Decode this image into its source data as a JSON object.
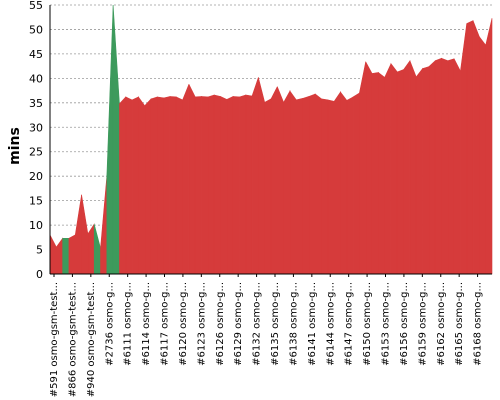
{
  "chart_data": {
    "type": "area",
    "title": "",
    "xlabel": "",
    "ylabel": "mins",
    "ylim": [
      0,
      55
    ],
    "yticks": [
      0,
      5,
      10,
      15,
      20,
      25,
      30,
      35,
      40,
      45,
      50,
      55
    ],
    "grid": true,
    "colors": {
      "failure": "#d63b3b",
      "success": "#3d9a5c"
    },
    "x_tick_labels": [
      "#591 osmo-gsm-test...",
      "#866 osmo-gsm-test...",
      "#940 osmo-gsm-test...",
      "#2736 osmo-g...",
      "#6111 osmo-g...",
      "#6114 osmo-g...",
      "#6117 osmo-g...",
      "#6120 osmo-g...",
      "#6123 osmo-g...",
      "#6126 osmo-g...",
      "#6129 osmo-g...",
      "#6132 osmo-g...",
      "#6135 osmo-g...",
      "#6138 osmo-g...",
      "#6141 osmo-g...",
      "#6144 osmo-g...",
      "#6147 osmo-g...",
      "#6150 osmo-g...",
      "#6153 osmo-g...",
      "#6156 osmo-g...",
      "#6159 osmo-g...",
      "#6162 osmo-g...",
      "#6165 osmo-g...",
      "#6168 osmo-g..."
    ],
    "values": [
      8,
      5.5,
      7.3,
      7.3,
      8,
      16.2,
      8.2,
      10.2,
      5.3,
      20,
      55,
      34.8,
      36.2,
      35.6,
      36.2,
      34.4,
      35.8,
      36.2,
      36,
      36.3,
      36.2,
      35.6,
      38.8,
      36.2,
      36.3,
      36.2,
      36.6,
      36.3,
      35.7,
      36.3,
      36.2,
      36.6,
      36.4,
      40.2,
      35.1,
      35.8,
      38.3,
      35.1,
      37.4,
      35.6,
      35.9,
      36.3,
      36.8,
      35.8,
      35.6,
      35.3,
      37.2,
      35.5,
      36.2,
      37,
      43.4,
      41,
      41.2,
      40.2,
      43,
      41.3,
      41.8,
      43.6,
      40.3,
      42,
      42.4,
      43.6,
      44.1,
      43.6,
      44,
      41.5,
      51.2,
      51.8,
      48.5,
      46.8,
      52.3
    ],
    "status": [
      "failure",
      "failure",
      "success",
      "failure",
      "failure",
      "failure",
      "failure",
      "success",
      "failure",
      "success",
      "success",
      "failure",
      "failure",
      "failure",
      "failure",
      "failure",
      "failure",
      "failure",
      "failure",
      "failure",
      "failure",
      "failure",
      "failure",
      "failure",
      "failure",
      "failure",
      "failure",
      "failure",
      "failure",
      "failure",
      "failure",
      "failure",
      "failure",
      "failure",
      "failure",
      "failure",
      "failure",
      "failure",
      "failure",
      "failure",
      "failure",
      "failure",
      "failure",
      "failure",
      "failure",
      "failure",
      "failure",
      "failure",
      "failure",
      "failure",
      "failure",
      "failure",
      "failure",
      "failure",
      "failure",
      "failure",
      "failure",
      "failure",
      "failure",
      "failure",
      "failure",
      "failure",
      "failure",
      "failure",
      "failure",
      "failure",
      "failure",
      "failure",
      "failure",
      "failure",
      "failure"
    ]
  }
}
